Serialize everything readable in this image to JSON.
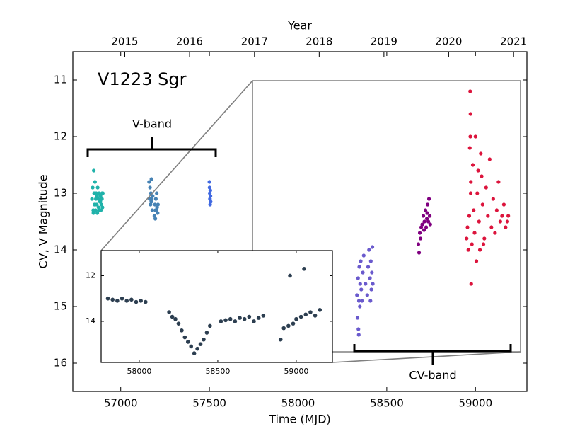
{
  "chart_data": [
    {
      "type": "scatter",
      "title": "V1223 Sgr",
      "xlabel": "Time (MJD)",
      "ylabel": "CV, V Magnitude",
      "x2label": "Year",
      "annotations": [
        "V-band",
        "CV-band"
      ],
      "xlim": [
        56730,
        59290
      ],
      "ylim": [
        16.5,
        10.5
      ],
      "xticks": [
        57000,
        57500,
        58000,
        58500,
        59000
      ],
      "yticks": [
        11,
        12,
        13,
        14,
        15,
        16
      ],
      "x2ticks": [
        {
          "value": 57023,
          "label": "2015"
        },
        {
          "value": 57388,
          "label": "2016"
        },
        {
          "value": 57754,
          "label": "2017"
        },
        {
          "value": 58119,
          "label": "2018"
        },
        {
          "value": 58484,
          "label": "2019"
        },
        {
          "value": 58849,
          "label": "2020"
        },
        {
          "value": 59215,
          "label": "2021"
        }
      ],
      "series": [
        {
          "color": "#20b2aa",
          "x": [
            56838,
            56842,
            56845,
            56848,
            56850,
            56852,
            56855,
            56858,
            56860,
            56862,
            56865,
            56868,
            56870,
            56873,
            56875,
            56878,
            56880,
            56883,
            56886,
            56888,
            56891,
            56894,
            56897,
            56899,
            56846,
            56856,
            56866,
            56876,
            56885,
            56895
          ],
          "values": [
            13.1,
            12.9,
            13.3,
            12.6,
            13.0,
            13.2,
            12.8,
            13.3,
            13.1,
            13.0,
            13.2,
            13.35,
            12.9,
            13.1,
            13.25,
            13.0,
            13.3,
            13.15,
            13.05,
            13.3,
            13.2,
            13.1,
            13.25,
            13.0,
            13.35,
            13.2,
            13.05,
            13.3,
            13.15,
            13.0
          ]
        },
        {
          "color": "#4682b4",
          "x": [
            57160,
            57163,
            57165,
            57168,
            57170,
            57173,
            57175,
            57178,
            57180,
            57190,
            57193,
            57195,
            57198,
            57200,
            57203,
            57205,
            57208,
            57210,
            57172,
            57196
          ],
          "values": [
            12.8,
            13.1,
            12.9,
            13.2,
            13.0,
            12.75,
            13.1,
            13.3,
            13.05,
            13.4,
            13.2,
            13.45,
            13.1,
            13.3,
            13.0,
            13.25,
            13.35,
            13.2,
            13.15,
            13.3
          ]
        },
        {
          "color": "#4169e1",
          "x": [
            57500,
            57501,
            57502,
            57503,
            57504,
            57505,
            57506,
            57507
          ],
          "values": [
            12.8,
            12.9,
            13.0,
            13.1,
            13.2,
            12.95,
            13.05,
            13.15
          ]
        },
        {
          "color": "#6a5acd",
          "x": [
            58332,
            58335,
            58338,
            58340,
            58343,
            58345,
            58348,
            58350,
            58353,
            58356,
            58360,
            58365,
            58370,
            58380,
            58390,
            58395,
            58400,
            58405,
            58408,
            58410,
            58413,
            58416,
            58419,
            58421,
            58342
          ],
          "values": [
            14.8,
            15.2,
            14.5,
            15.4,
            14.9,
            14.3,
            15.0,
            14.6,
            14.2,
            14.7,
            14.9,
            14.4,
            14.1,
            14.6,
            14.8,
            14.3,
            14.0,
            14.5,
            14.9,
            14.2,
            14.7,
            14.4,
            13.95,
            14.6,
            15.5
          ]
        },
        {
          "color": "#800080",
          "x": [
            58678,
            58682,
            58686,
            58690,
            58694,
            58700,
            58706,
            58712,
            58718,
            58722,
            58726,
            58730,
            58734,
            58738,
            58742,
            58745,
            58710,
            58728
          ],
          "values": [
            13.9,
            14.05,
            13.7,
            13.8,
            13.6,
            13.55,
            13.4,
            13.5,
            13.3,
            13.6,
            13.45,
            13.2,
            13.5,
            13.1,
            13.4,
            13.55,
            13.65,
            13.35
          ]
        },
        {
          "color": "#dc143c",
          "x": [
            58950,
            58955,
            58960,
            58965,
            58968,
            58970,
            58972,
            58974,
            58976,
            58980,
            58985,
            58990,
            58995,
            59000,
            59005,
            59010,
            59015,
            59020,
            59025,
            59030,
            59040,
            59050,
            59060,
            59070,
            59080,
            59090,
            59100,
            59110,
            59120,
            59130,
            59140,
            59150,
            59160,
            59170,
            59180,
            59185,
            58971,
            58973,
            59035,
            59045
          ],
          "values": [
            13.8,
            13.6,
            14.0,
            13.4,
            12.2,
            11.2,
            11.6,
            12.8,
            14.6,
            13.9,
            12.5,
            13.3,
            13.7,
            12.0,
            14.2,
            13.0,
            12.6,
            13.5,
            14.0,
            12.3,
            13.2,
            13.8,
            12.9,
            13.4,
            12.4,
            13.6,
            13.1,
            13.7,
            13.3,
            12.8,
            13.5,
            13.4,
            13.2,
            13.6,
            13.5,
            13.4,
            12.0,
            13.0,
            12.7,
            13.9
          ]
        }
      ]
    },
    {
      "type": "scatter",
      "xlim": [
        57757,
        59230
      ],
      "ylim": [
        15.8,
        10.9
      ],
      "xticks": [
        58000,
        58500,
        59000
      ],
      "yticks": [
        12,
        14
      ],
      "series": [
        {
          "color": "#2c3e50",
          "x": [
            57800,
            57830,
            57860,
            57890,
            57920,
            57950,
            57980,
            58010,
            58040,
            58190,
            58210,
            58230,
            58250,
            58270,
            58290,
            58310,
            58330,
            58350,
            58370,
            58390,
            58410,
            58430,
            58450,
            58520,
            58550,
            58580,
            58610,
            58640,
            58670,
            58700,
            58730,
            58760,
            58790,
            58900,
            58920,
            58950,
            58980,
            59000,
            59030,
            59060,
            59090,
            59120,
            59150,
            58960,
            59050
          ],
          "values": [
            13.0,
            13.05,
            13.1,
            13.0,
            13.1,
            13.05,
            13.15,
            13.1,
            13.15,
            13.6,
            13.8,
            13.9,
            14.1,
            14.4,
            14.7,
            14.9,
            15.1,
            15.4,
            15.2,
            15.0,
            14.8,
            14.5,
            14.2,
            14.0,
            13.95,
            13.9,
            14.0,
            13.85,
            13.9,
            13.8,
            14.0,
            13.85,
            13.75,
            14.8,
            14.3,
            14.2,
            14.1,
            13.9,
            13.8,
            13.7,
            13.6,
            13.75,
            13.5,
            12.0,
            11.7
          ]
        }
      ]
    }
  ]
}
